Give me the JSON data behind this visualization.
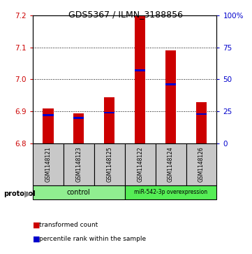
{
  "title": "GDS5367 / ILMN_3188856",
  "samples": [
    "GSM1148121",
    "GSM1148123",
    "GSM1148125",
    "GSM1148122",
    "GSM1148124",
    "GSM1148126"
  ],
  "transformed_count": [
    6.91,
    6.895,
    6.945,
    7.2,
    7.09,
    6.93
  ],
  "percentile_rank": [
    22,
    20,
    24,
    57,
    46,
    23
  ],
  "ymin": 6.8,
  "ymax": 7.2,
  "yticks": [
    6.8,
    6.9,
    7.0,
    7.1,
    7.2
  ],
  "bar_color": "#cc0000",
  "blue_color": "#0000cc",
  "ctrl_color": "#90EE90",
  "mir_color": "#55EE55",
  "legend_red_label": "transformed count",
  "legend_blue_label": "percentile rank within the sample"
}
